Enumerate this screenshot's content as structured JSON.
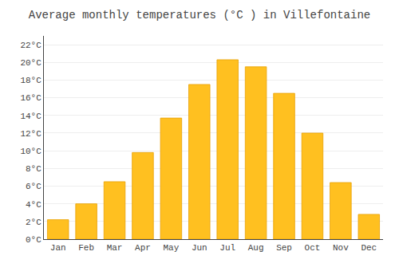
{
  "chart_data": {
    "type": "bar",
    "title": "Average monthly temperatures (°C ) in Villefontaine",
    "categories": [
      "Jan",
      "Feb",
      "Mar",
      "Apr",
      "May",
      "Jun",
      "Jul",
      "Aug",
      "Sep",
      "Oct",
      "Nov",
      "Dec"
    ],
    "values": [
      2.2,
      4.0,
      6.5,
      9.8,
      13.7,
      17.5,
      20.3,
      19.5,
      16.5,
      12.0,
      6.4,
      2.8
    ],
    "color": "#FFC020",
    "ylim": [
      0,
      23
    ],
    "yticks": [
      {
        "value": 0,
        "label": "0°C"
      },
      {
        "value": 2,
        "label": "2°C"
      },
      {
        "value": 4,
        "label": "4°C"
      },
      {
        "value": 6,
        "label": "6°C"
      },
      {
        "value": 8,
        "label": "8°C"
      },
      {
        "value": 10,
        "label": "10°C"
      },
      {
        "value": 12,
        "label": "12°C"
      },
      {
        "value": 14,
        "label": "14°C"
      },
      {
        "value": 16,
        "label": "16°C"
      },
      {
        "value": 18,
        "label": "18°C"
      },
      {
        "value": 20,
        "label": "20°C"
      },
      {
        "value": 22,
        "label": "22°C"
      }
    ],
    "grid": true
  }
}
